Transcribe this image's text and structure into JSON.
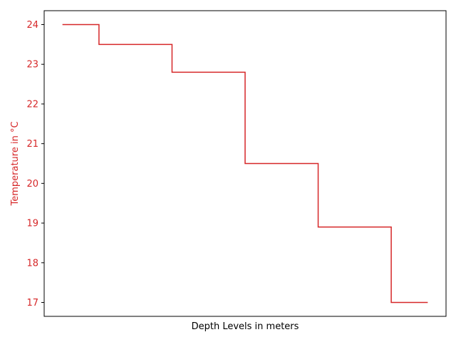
{
  "chart_data": {
    "type": "line",
    "drawstyle": "steps-mid",
    "x": [
      0,
      1,
      2,
      3,
      4,
      5
    ],
    "series": [
      {
        "values": [
          24.0,
          23.5,
          22.8,
          20.5,
          18.9,
          17.0
        ]
      }
    ],
    "xlabel": "Depth Levels in meters",
    "ylabel": "Temperature in °C",
    "yticks": [
      "17",
      "18",
      "19",
      "20",
      "21",
      "22",
      "23",
      "24"
    ],
    "ylim": [
      16.65,
      24.35
    ],
    "xlim": [
      -0.25,
      5.25
    ],
    "show_xticks": false,
    "grid": false,
    "colors": {
      "series": "#d62728",
      "axis_label": "#d62728",
      "frame": "#000000"
    }
  }
}
